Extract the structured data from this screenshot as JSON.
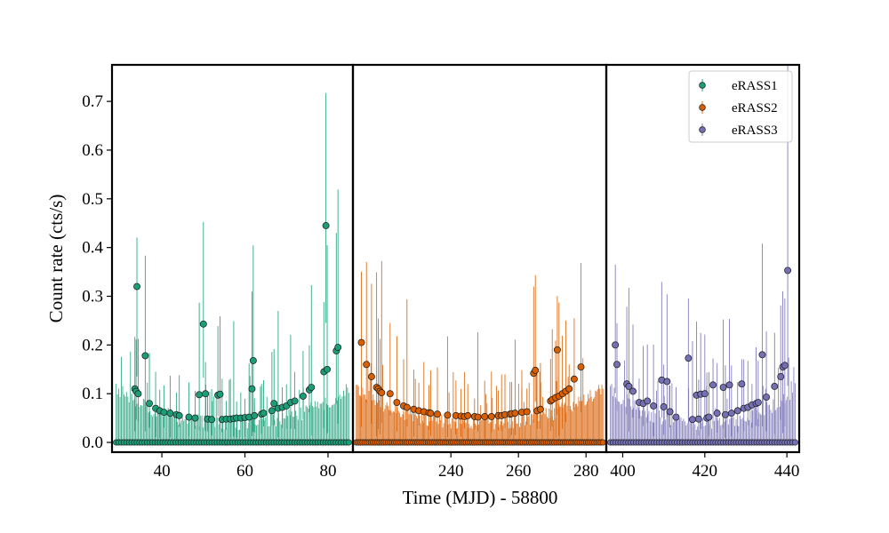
{
  "chart_data": {
    "type": "scatter",
    "xlabel": "Time (MJD) - 58800",
    "ylabel": "Count rate (cts/s)",
    "ylim": [
      -0.02,
      0.775
    ],
    "yticks": [
      0.0,
      0.1,
      0.2,
      0.3,
      0.4,
      0.5,
      0.6,
      0.7
    ],
    "ytick_labels": [
      "0.0",
      "0.1",
      "0.2",
      "0.3",
      "0.4",
      "0.5",
      "0.6",
      "0.7"
    ],
    "grid": false,
    "legend_position": "top-right",
    "panels": [
      {
        "xlim": [
          28,
          86
        ],
        "xticks": [
          40,
          60,
          80
        ],
        "xtick_labels": [
          "40",
          "60",
          "80"
        ]
      },
      {
        "xlim": [
          211,
          286
        ],
        "xticks": [
          240,
          260,
          280
        ],
        "xtick_labels": [
          "240",
          "260",
          "280"
        ]
      },
      {
        "xlim": [
          396,
          443
        ],
        "xticks": [
          400,
          420,
          440
        ],
        "xtick_labels": [
          "400",
          "420",
          "440"
        ]
      }
    ],
    "series": [
      {
        "name": "eRASS1",
        "color": "#1b9e77",
        "panel": 0,
        "detections": [
          [
            33.5,
            0.11
          ],
          [
            33.8,
            0.105
          ],
          [
            34.0,
            0.32
          ],
          [
            34.3,
            0.1
          ],
          [
            36.0,
            0.178
          ],
          [
            37.0,
            0.08
          ],
          [
            38.5,
            0.07
          ],
          [
            39.5,
            0.065
          ],
          [
            40.5,
            0.062
          ],
          [
            42.0,
            0.06
          ],
          [
            43.5,
            0.057
          ],
          [
            44.2,
            0.055
          ],
          [
            46.5,
            0.052
          ],
          [
            48.0,
            0.05
          ],
          [
            49.0,
            0.098
          ],
          [
            50.0,
            0.243
          ],
          [
            50.5,
            0.1
          ],
          [
            51.0,
            0.048
          ],
          [
            52.0,
            0.047
          ],
          [
            53.5,
            0.097
          ],
          [
            54.0,
            0.099
          ],
          [
            54.5,
            0.047
          ],
          [
            55.5,
            0.048
          ],
          [
            56.5,
            0.048
          ],
          [
            57.3,
            0.049
          ],
          [
            58.0,
            0.05
          ],
          [
            59.0,
            0.05
          ],
          [
            60.0,
            0.051
          ],
          [
            61.0,
            0.052
          ],
          [
            61.7,
            0.11
          ],
          [
            62.0,
            0.168
          ],
          [
            62.3,
            0.055
          ],
          [
            64.0,
            0.058
          ],
          [
            64.5,
            0.06
          ],
          [
            66.5,
            0.065
          ],
          [
            67.0,
            0.08
          ],
          [
            68.0,
            0.07
          ],
          [
            69.0,
            0.072
          ],
          [
            70.0,
            0.075
          ],
          [
            71.0,
            0.082
          ],
          [
            72.0,
            0.085
          ],
          [
            74.0,
            0.095
          ],
          [
            75.5,
            0.108
          ],
          [
            76.0,
            0.113
          ],
          [
            79.0,
            0.145
          ],
          [
            79.5,
            0.445
          ],
          [
            79.8,
            0.15
          ],
          [
            82.0,
            0.188
          ],
          [
            82.4,
            0.195
          ]
        ],
        "nondetections_x_range": [
          29,
          85
        ]
      },
      {
        "name": "eRASS2",
        "color": "#d95f02",
        "panel": 1,
        "detections": [
          [
            213.5,
            0.205
          ],
          [
            215.0,
            0.16
          ],
          [
            216.5,
            0.135
          ],
          [
            218.0,
            0.113
          ],
          [
            218.5,
            0.11
          ],
          [
            219.0,
            0.105
          ],
          [
            219.5,
            0.102
          ],
          [
            222.0,
            0.1
          ],
          [
            224.0,
            0.082
          ],
          [
            226.0,
            0.075
          ],
          [
            227.0,
            0.072
          ],
          [
            229.0,
            0.068
          ],
          [
            230.5,
            0.065
          ],
          [
            232.0,
            0.063
          ],
          [
            233.5,
            0.061
          ],
          [
            234.0,
            0.06
          ],
          [
            236.0,
            0.058
          ],
          [
            239.0,
            0.056
          ],
          [
            241.5,
            0.055
          ],
          [
            243.0,
            0.054
          ],
          [
            244.0,
            0.053
          ],
          [
            245.0,
            0.055
          ],
          [
            247.0,
            0.053
          ],
          [
            248.0,
            0.052
          ],
          [
            250.0,
            0.053
          ],
          [
            252.0,
            0.053
          ],
          [
            254.0,
            0.055
          ],
          [
            255.0,
            0.055
          ],
          [
            256.0,
            0.057
          ],
          [
            257.5,
            0.058
          ],
          [
            258.0,
            0.059
          ],
          [
            259.0,
            0.06
          ],
          [
            261.0,
            0.062
          ],
          [
            262.5,
            0.063
          ],
          [
            264.5,
            0.142
          ],
          [
            265.0,
            0.148
          ],
          [
            265.5,
            0.065
          ],
          [
            266.5,
            0.068
          ],
          [
            269.5,
            0.085
          ],
          [
            270.0,
            0.088
          ],
          [
            271.0,
            0.092
          ],
          [
            271.5,
            0.19
          ],
          [
            272.0,
            0.095
          ],
          [
            273.0,
            0.1
          ],
          [
            274.0,
            0.105
          ],
          [
            275.0,
            0.11
          ],
          [
            276.5,
            0.13
          ],
          [
            278.5,
            0.155
          ]
        ],
        "nondetections_x_range": [
          212,
          285
        ]
      },
      {
        "name": "eRASS3",
        "color": "#7570b3",
        "panel": 2,
        "detections": [
          [
            398.2,
            0.2
          ],
          [
            398.6,
            0.16
          ],
          [
            401.0,
            0.12
          ],
          [
            401.5,
            0.115
          ],
          [
            402.5,
            0.105
          ],
          [
            404.0,
            0.082
          ],
          [
            405.0,
            0.08
          ],
          [
            406.0,
            0.085
          ],
          [
            407.5,
            0.075
          ],
          [
            409.5,
            0.128
          ],
          [
            410.0,
            0.073
          ],
          [
            410.8,
            0.125
          ],
          [
            411.5,
            0.063
          ],
          [
            413.0,
            0.052
          ],
          [
            416.0,
            0.173
          ],
          [
            417.0,
            0.047
          ],
          [
            418.0,
            0.097
          ],
          [
            418.5,
            0.048
          ],
          [
            419.0,
            0.099
          ],
          [
            420.0,
            0.1
          ],
          [
            420.5,
            0.05
          ],
          [
            421.0,
            0.052
          ],
          [
            422.0,
            0.118
          ],
          [
            423.0,
            0.06
          ],
          [
            424.5,
            0.113
          ],
          [
            425.0,
            0.057
          ],
          [
            426.0,
            0.118
          ],
          [
            426.5,
            0.06
          ],
          [
            428.0,
            0.065
          ],
          [
            429.0,
            0.12
          ],
          [
            429.5,
            0.07
          ],
          [
            430.5,
            0.072
          ],
          [
            431.5,
            0.077
          ],
          [
            432.5,
            0.08
          ],
          [
            433.0,
            0.082
          ],
          [
            434.0,
            0.18
          ],
          [
            435.0,
            0.093
          ],
          [
            437.0,
            0.115
          ],
          [
            438.5,
            0.135
          ],
          [
            439.0,
            0.155
          ],
          [
            439.5,
            0.158
          ],
          [
            440.2,
            0.353
          ]
        ],
        "nondetections_x_range": [
          397,
          442
        ]
      }
    ]
  }
}
